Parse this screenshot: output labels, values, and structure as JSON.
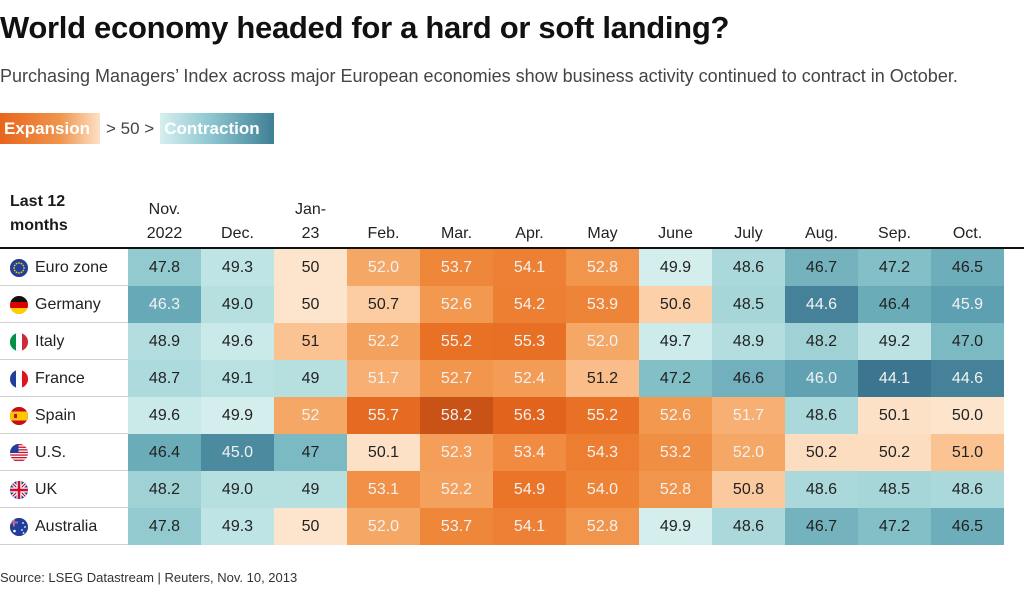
{
  "title": "World economy headed for a hard or soft landing?",
  "subtitle": "Purchasing Managers’ Index across major European economies show business activity continued to contract in October.",
  "legend": {
    "expansion": "Expansion",
    "middle": "> 50 >",
    "contraction": "Contraction"
  },
  "colors": {
    "expansion": "#e8651c",
    "contraction": "#3f7f95",
    "neutral": "#f2f2f2"
  },
  "source": "Source: LSEG Datastream | Reuters, Nov. 10, 2013",
  "chart_data": {
    "type": "heatmap",
    "corner_label": [
      "Last 12",
      "months"
    ],
    "columns": [
      [
        "Nov.",
        "2022"
      ],
      [
        "Dec."
      ],
      [
        "Jan-",
        "23"
      ],
      [
        "Feb."
      ],
      [
        "Mar."
      ],
      [
        "Apr."
      ],
      [
        "May"
      ],
      [
        "June"
      ],
      [
        "July"
      ],
      [
        "Aug."
      ],
      [
        "Sep."
      ],
      [
        "Oct."
      ]
    ],
    "threshold": 50,
    "rows": [
      {
        "name": "Euro zone",
        "flag": "eu-flag-icon",
        "values": [
          "47.8",
          "49.3",
          "50",
          "52.0",
          "53.7",
          "54.1",
          "52.8",
          "49.9",
          "48.6",
          "46.7",
          "47.2",
          "46.5"
        ]
      },
      {
        "name": "Germany",
        "flag": "germany-flag-icon",
        "values": [
          "46.3",
          "49.0",
          "50",
          "50.7",
          "52.6",
          "54.2",
          "53.9",
          "50.6",
          "48.5",
          "44.6",
          "46.4",
          "45.9"
        ]
      },
      {
        "name": "Italy",
        "flag": "italy-flag-icon",
        "values": [
          "48.9",
          "49.6",
          "51",
          "52.2",
          "55.2",
          "55.3",
          "52.0",
          "49.7",
          "48.9",
          "48.2",
          "49.2",
          "47.0"
        ]
      },
      {
        "name": "France",
        "flag": "france-flag-icon",
        "values": [
          "48.7",
          "49.1",
          "49",
          "51.7",
          "52.7",
          "52.4",
          "51.2",
          "47.2",
          "46.6",
          "46.0",
          "44.1",
          "44.6"
        ]
      },
      {
        "name": "Spain",
        "flag": "spain-flag-icon",
        "values": [
          "49.6",
          "49.9",
          "52",
          "55.7",
          "58.2",
          "56.3",
          "55.2",
          "52.6",
          "51.7",
          "48.6",
          "50.1",
          "50.0"
        ]
      },
      {
        "name": "U.S.",
        "flag": "us-flag-icon",
        "values": [
          "46.4",
          "45.0",
          "47",
          "50.1",
          "52.3",
          "53.4",
          "54.3",
          "53.2",
          "52.0",
          "50.2",
          "50.2",
          "51.0"
        ]
      },
      {
        "name": "UK",
        "flag": "uk-flag-icon",
        "values": [
          "48.2",
          "49.0",
          "49",
          "53.1",
          "52.2",
          "54.9",
          "54.0",
          "52.8",
          "50.8",
          "48.6",
          "48.5",
          "48.6"
        ]
      },
      {
        "name": "Australia",
        "flag": "australia-flag-icon",
        "values": [
          "47.8",
          "49.3",
          "50",
          "52.0",
          "53.7",
          "54.1",
          "52.8",
          "49.9",
          "48.6",
          "46.7",
          "47.2",
          "46.5"
        ]
      }
    ]
  }
}
